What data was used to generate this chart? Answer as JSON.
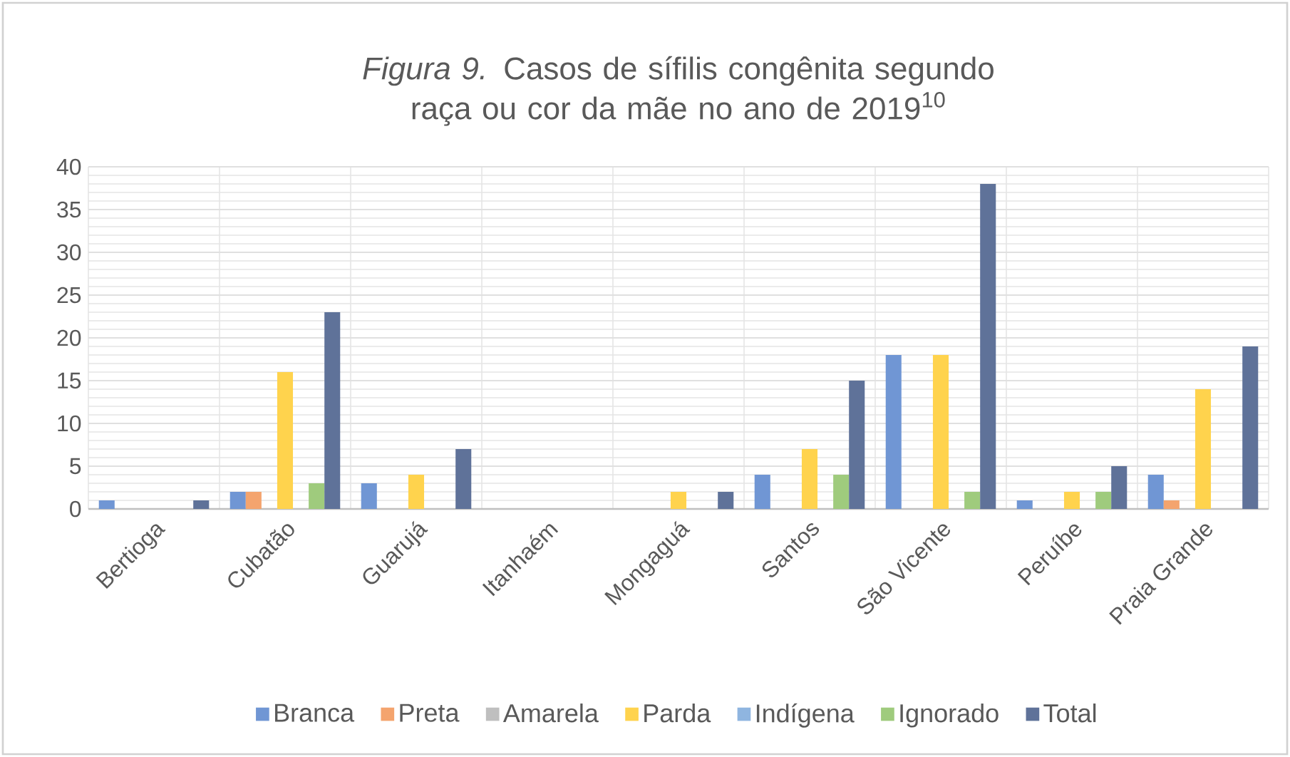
{
  "chart_data": {
    "type": "bar",
    "title": "*Figura 9.* Casos de sífilis congênita segundo raça ou cor da mãe no ano de 2019$^{10}$",
    "categories": [
      "Bertioga",
      "Cubatão",
      "Guarujá",
      "Itanhaém",
      "Mongaguá",
      "Santos",
      "São Vicente",
      "Peruíbe",
      "Praia Grande"
    ],
    "series": [
      {
        "name": "Branca",
        "color": "#7096d4",
        "values": [
          1,
          2,
          3,
          0,
          0,
          4,
          18,
          1,
          4
        ]
      },
      {
        "name": "Preta",
        "color": "#f4a46e",
        "values": [
          0,
          2,
          0,
          0,
          0,
          0,
          0,
          0,
          1
        ]
      },
      {
        "name": "Amarela",
        "color": "#bfbfbf",
        "values": [
          0,
          0,
          0,
          0,
          0,
          0,
          0,
          0,
          0
        ]
      },
      {
        "name": "Parda",
        "color": "#ffd34d",
        "values": [
          0,
          16,
          4,
          0,
          2,
          7,
          18,
          2,
          14
        ]
      },
      {
        "name": "Indígena",
        "color": "#8fb5e0",
        "values": [
          0,
          0,
          0,
          0,
          0,
          0,
          0,
          0,
          0
        ]
      },
      {
        "name": "Ignorado",
        "color": "#9fcb7d",
        "values": [
          0,
          3,
          0,
          0,
          0,
          4,
          2,
          2,
          0
        ]
      },
      {
        "name": "Total",
        "color": "#5f7299",
        "values": [
          1,
          23,
          7,
          0,
          2,
          15,
          38,
          5,
          19
        ]
      }
    ],
    "ylim": [
      0,
      40
    ],
    "yticks": [
      0,
      5,
      10,
      15,
      20,
      25,
      30,
      35,
      40
    ],
    "grid": true,
    "legend": "bottom"
  }
}
